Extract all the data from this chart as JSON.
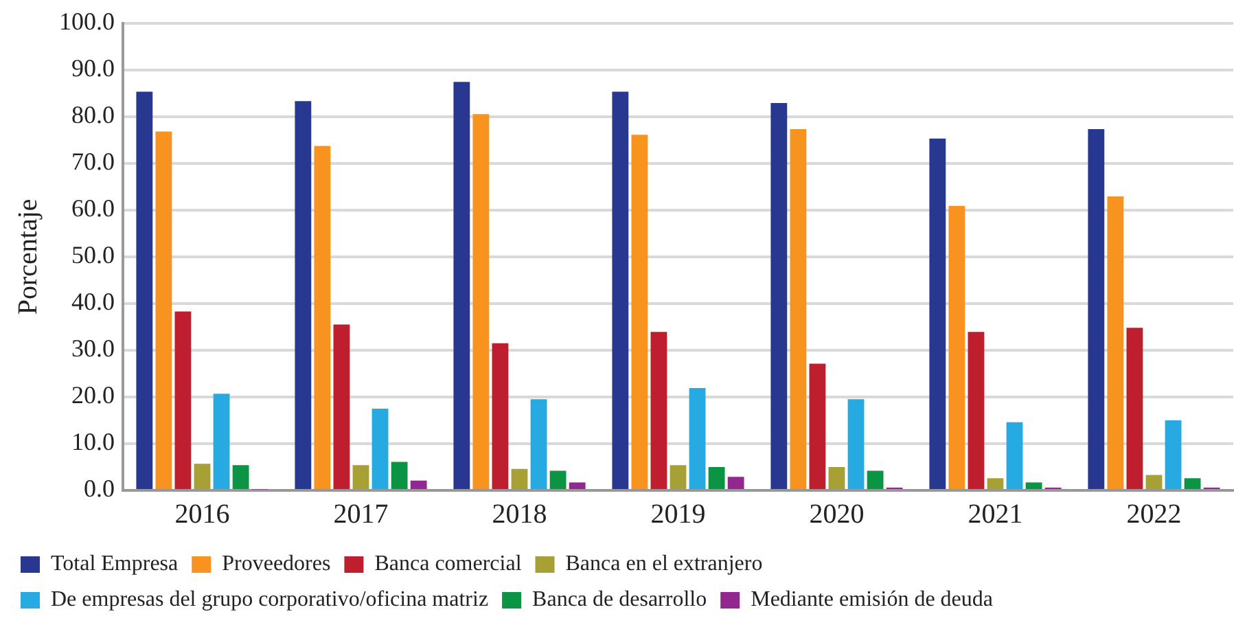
{
  "chart_data": {
    "type": "bar",
    "ylabel": "Porcentaje",
    "categories": [
      "2016",
      "2017",
      "2018",
      "2019",
      "2020",
      "2021",
      "2022"
    ],
    "series": [
      {
        "name": "Total Empresa",
        "color": "#283891",
        "values": [
          85.3,
          83.3,
          87.4,
          85.3,
          82.9,
          75.3,
          77.3
        ]
      },
      {
        "name": "Proveedores",
        "color": "#f7931e",
        "values": [
          76.8,
          73.7,
          80.5,
          76.1,
          77.3,
          60.9,
          62.9
        ]
      },
      {
        "name": "Banca comercial",
        "color": "#be1e2d",
        "values": [
          38.3,
          35.5,
          31.5,
          33.9,
          27.1,
          33.9,
          34.8
        ]
      },
      {
        "name": "Banca en el extranjero",
        "color": "#a6a035",
        "values": [
          5.7,
          5.4,
          4.6,
          5.4,
          5.0,
          2.6,
          3.3
        ]
      },
      {
        "name": "De empresas del grupo corporativo/oficina matriz",
        "color": "#27aae1",
        "values": [
          20.7,
          17.5,
          19.5,
          21.9,
          19.5,
          14.6,
          15.0
        ]
      },
      {
        "name": "Banca de desarrollo",
        "color": "#0b9444",
        "values": [
          5.4,
          6.1,
          4.2,
          5.0,
          4.2,
          1.7,
          2.6
        ]
      },
      {
        "name": "Mediante emisión de deuda",
        "color": "#92278f",
        "values": [
          0.2,
          2.1,
          1.7,
          2.9,
          0.6,
          0.6,
          0.6
        ]
      }
    ],
    "ylim": [
      0,
      100
    ],
    "yticks": [
      {
        "value": 0,
        "label": "0.0"
      },
      {
        "value": 10,
        "label": "10.0"
      },
      {
        "value": 20,
        "label": "20.0"
      },
      {
        "value": 30,
        "label": "30.0"
      },
      {
        "value": 40,
        "label": "40.0"
      },
      {
        "value": 50,
        "label": "50.0"
      },
      {
        "value": 60,
        "label": "60.0"
      },
      {
        "value": 70,
        "label": "70.0"
      },
      {
        "value": 80,
        "label": "80.0"
      },
      {
        "value": 90,
        "label": "90.0"
      },
      {
        "value": 100,
        "label": "100.0"
      }
    ],
    "grid": "y",
    "legend": "bottom"
  }
}
